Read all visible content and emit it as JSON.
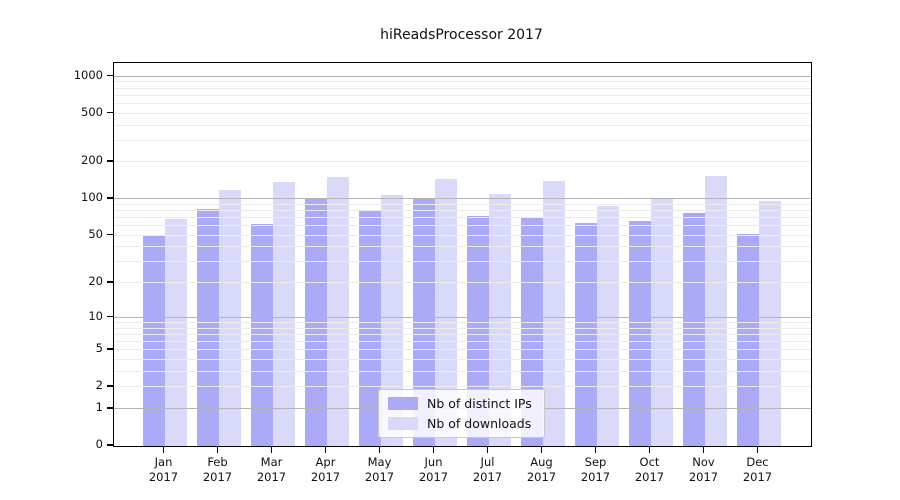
{
  "title": "hiReadsProcessor 2017",
  "chart_data": {
    "type": "bar",
    "title": "hiReadsProcessor 2017",
    "xlabel": "",
    "ylabel": "",
    "scale": "log10(1+value)",
    "categories": [
      "Jan 2017",
      "Feb 2017",
      "Mar 2017",
      "Apr 2017",
      "May 2017",
      "Jun 2017",
      "Jul 2017",
      "Aug 2017",
      "Sep 2017",
      "Oct 2017",
      "Nov 2017",
      "Dec 2017"
    ],
    "series": [
      {
        "name": "Nb of distinct IPs",
        "color": "#aaaaf7",
        "values": [
          49,
          82,
          62,
          100,
          79,
          100,
          72,
          70,
          63,
          65,
          76,
          51
        ]
      },
      {
        "name": "Nb of downloads",
        "color": "#d9d9fa",
        "values": [
          68,
          118,
          135,
          148,
          106,
          145,
          108,
          138,
          87,
          101,
          151,
          95
        ]
      }
    ],
    "y_tick_values": [
      0,
      1,
      2,
      5,
      10,
      20,
      50,
      100,
      200,
      500,
      1000
    ],
    "y_tick_labels": [
      "0",
      "1",
      "2",
      "5",
      "10",
      "20",
      "50",
      "100",
      "200",
      "500",
      "1000"
    ],
    "ylim_top": 1270,
    "major_gridlines": [
      1,
      10,
      100,
      1000
    ],
    "minor_gridlines": [
      2,
      3,
      4,
      5,
      6,
      7,
      8,
      9,
      20,
      30,
      40,
      50,
      60,
      70,
      80,
      90,
      200,
      300,
      400,
      500,
      600,
      700,
      800,
      900
    ],
    "grid_major_color": "#b4b4b4",
    "grid_minor_color": "#ececec",
    "legend_position": "lower center",
    "legend": [
      "Nb of distinct IPs",
      "Nb of downloads"
    ]
  }
}
